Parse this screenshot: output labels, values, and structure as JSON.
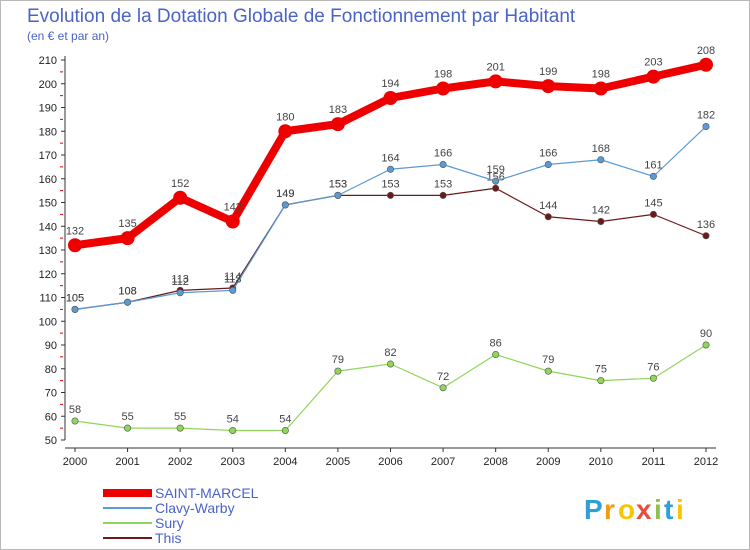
{
  "chart_data": {
    "type": "line",
    "title": "Evolution de la Dotation Globale de Fonctionnement par Habitant",
    "subtitle": "(en € et par an)",
    "xlabel": "",
    "ylabel": "",
    "categories": [
      "2000",
      "2001",
      "2002",
      "2003",
      "2004",
      "2005",
      "2006",
      "2007",
      "2008",
      "2009",
      "2010",
      "2011",
      "2012"
    ],
    "ylim": [
      50,
      210
    ],
    "yticks": [
      50,
      60,
      70,
      80,
      90,
      100,
      110,
      120,
      130,
      140,
      150,
      160,
      170,
      180,
      190,
      200,
      210
    ],
    "grid": false,
    "legend_position": "bottom-left",
    "series": [
      {
        "name": "This",
        "color": "#6b1a1a",
        "values": [
          105,
          108,
          113,
          114,
          149,
          153,
          153,
          153,
          156,
          144,
          142,
          145,
          136
        ],
        "labels": [
          "105",
          "108",
          "113",
          "114",
          "149",
          "153",
          "153",
          "153",
          "156",
          "144",
          "142",
          "145",
          "136"
        ]
      },
      {
        "name": "Clavy-Warby",
        "color": "#5b9bd5",
        "values": [
          105,
          108,
          112,
          113,
          149,
          153,
          164,
          166,
          159,
          166,
          168,
          161,
          182
        ],
        "labels": [
          "105",
          "108",
          "112",
          "113",
          "149",
          "153",
          "164",
          "166",
          "159",
          "166",
          "168",
          "161",
          "182"
        ]
      },
      {
        "name": "Sury",
        "color": "#8fd65a",
        "values": [
          58,
          55,
          55,
          54,
          54,
          79,
          82,
          72,
          86,
          79,
          75,
          76,
          90
        ],
        "labels": [
          "58",
          "55",
          "55",
          "54",
          "54",
          "79",
          "82",
          "72",
          "86",
          "79",
          "75",
          "76",
          "90"
        ]
      },
      {
        "name": "SAINT-MARCEL",
        "color": "#ee0000",
        "values": [
          132,
          135,
          152,
          142,
          180,
          183,
          194,
          198,
          201,
          199,
          198,
          203,
          208
        ],
        "labels": [
          "132",
          "135",
          "152",
          "142",
          "180",
          "183",
          "194",
          "198",
          "201",
          "199",
          "198",
          "203",
          "208"
        ]
      }
    ],
    "legend": [
      "SAINT-MARCEL",
      "Clavy-Warby",
      "Sury",
      "This"
    ]
  },
  "logo": {
    "text": "Proxiti",
    "letters": [
      "P",
      "r",
      "o",
      "x",
      "i",
      "t",
      "i"
    ],
    "colors": [
      "#2e9fd8",
      "#f39c12",
      "#f7c600",
      "#e74c3c",
      "#8bc34a",
      "#2e9fd8",
      "#f7c600"
    ]
  }
}
